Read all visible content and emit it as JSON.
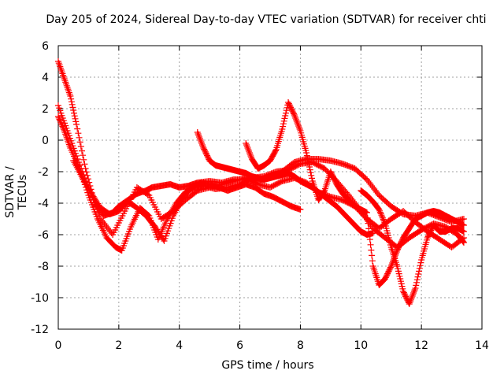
{
  "chart_data": {
    "type": "scatter",
    "title": "Day 205 of 2024, Sidereal Day-to-day VTEC variation (SDTVAR) for receiver chti",
    "xlabel": "GPS time / hours",
    "ylabel": "SDTVAR / TECUs",
    "xlim": [
      0,
      14
    ],
    "ylim": [
      -12,
      6
    ],
    "xticks": [
      "0",
      "2",
      "4",
      "6",
      "8",
      "10",
      "12",
      "14"
    ],
    "yticks": [
      "-12",
      "-10",
      "-8",
      "-6",
      "-4",
      "-2",
      "0",
      "2",
      "4",
      "6"
    ],
    "grid": true,
    "marker": "+",
    "color": "#ff0000",
    "series": [
      {
        "name": "track-1",
        "x": [
          0.0,
          0.2,
          0.4,
          0.6,
          0.9,
          1.2,
          1.5,
          1.8,
          2.0,
          2.3,
          2.6,
          2.9,
          3.1,
          3.4,
          3.7,
          4.0,
          4.3,
          4.6,
          5.0,
          5.4,
          5.8,
          6.2,
          6.6,
          7.0,
          7.4,
          7.8,
          8.2,
          8.6,
          9.0,
          9.4,
          9.8,
          10.2,
          10.6,
          11.0,
          11.4,
          11.8,
          12.2,
          12.6,
          13.0,
          13.4
        ],
        "y": [
          5.0,
          3.9,
          2.8,
          1.0,
          -1.8,
          -4.0,
          -4.8,
          -4.6,
          -4.2,
          -3.8,
          -3.4,
          -3.2,
          -3.0,
          -2.9,
          -2.8,
          -3.0,
          -2.9,
          -2.7,
          -2.6,
          -2.7,
          -2.5,
          -2.5,
          -2.6,
          -2.3,
          -2.0,
          -1.4,
          -1.2,
          -1.2,
          -1.3,
          -1.5,
          -1.8,
          -2.5,
          -3.5,
          -4.2,
          -4.7,
          -4.8,
          -4.6,
          -4.9,
          -5.2,
          -5.0
        ]
      },
      {
        "name": "track-2",
        "x": [
          0.0,
          0.2,
          0.4,
          0.7,
          1.0,
          1.3,
          1.6,
          1.9,
          2.1,
          2.4,
          2.7,
          3.0,
          3.3,
          3.6,
          3.9,
          4.2,
          4.5,
          4.8,
          5.2,
          5.6,
          6.0,
          6.4,
          6.8,
          7.2,
          7.6,
          8.0,
          8.4,
          8.8,
          9.2,
          9.6,
          10.0,
          10.4,
          10.8,
          11.2,
          11.6,
          12.0,
          12.4,
          12.8,
          13.2,
          13.4
        ],
        "y": [
          1.5,
          0.6,
          -0.5,
          -1.8,
          -3.5,
          -5.0,
          -6.2,
          -6.8,
          -7.0,
          -5.5,
          -4.3,
          -4.8,
          -6.3,
          -5.0,
          -4.0,
          -3.3,
          -3.0,
          -2.9,
          -3.1,
          -3.0,
          -2.8,
          -2.4,
          -2.3,
          -2.0,
          -1.9,
          -1.5,
          -1.4,
          -1.8,
          -2.6,
          -3.5,
          -4.5,
          -5.6,
          -6.2,
          -6.8,
          -6.2,
          -5.7,
          -5.3,
          -5.5,
          -6.0,
          -6.5
        ]
      },
      {
        "name": "track-3",
        "x": [
          0.0,
          0.3,
          0.6,
          1.0,
          1.4,
          1.8,
          2.2,
          2.6,
          3.0,
          3.4,
          3.8,
          4.2,
          4.6,
          5.0,
          5.4,
          5.8,
          6.2,
          6.6,
          7.0,
          7.4,
          7.8,
          8.2,
          8.6,
          9.0,
          9.4,
          9.8,
          10.2,
          10.6,
          11.0,
          11.4,
          11.8,
          12.2,
          12.6,
          13.0,
          13.4
        ],
        "y": [
          2.2,
          0.6,
          -1.0,
          -3.0,
          -5.0,
          -6.0,
          -4.5,
          -3.0,
          -3.5,
          -5.0,
          -4.5,
          -3.8,
          -3.2,
          -3.0,
          -2.8,
          -2.6,
          -2.4,
          -2.8,
          -3.0,
          -2.6,
          -2.4,
          -2.7,
          -3.3,
          -3.6,
          -3.8,
          -4.2,
          -5.0,
          -5.6,
          -5.0,
          -4.5,
          -5.2,
          -5.8,
          -6.3,
          -6.8,
          -6.2
        ]
      },
      {
        "name": "track-4",
        "x": [
          0.5,
          0.8,
          1.1,
          1.4,
          1.7,
          2.0,
          2.3,
          2.6,
          2.9,
          3.2,
          3.5,
          3.8,
          4.1,
          4.4,
          4.7,
          5.0,
          5.3,
          5.6,
          5.9,
          6.2,
          6.5,
          6.8,
          7.1,
          7.4,
          7.7,
          8.0
        ],
        "y": [
          -1.3,
          -2.4,
          -3.4,
          -4.3,
          -4.7,
          -4.5,
          -3.9,
          -4.3,
          -4.8,
          -5.5,
          -6.4,
          -4.8,
          -3.7,
          -3.0,
          -2.7,
          -2.8,
          -3.0,
          -3.2,
          -3.0,
          -2.8,
          -3.0,
          -3.4,
          -3.6,
          -3.9,
          -4.2,
          -4.4
        ]
      },
      {
        "name": "track-5",
        "x": [
          4.6,
          4.8,
          5.0,
          5.2,
          5.4,
          5.6,
          5.8,
          6.0,
          6.2,
          6.4,
          6.6,
          6.8,
          7.0,
          7.2,
          7.4,
          7.6,
          7.8,
          8.0,
          8.2,
          8.4,
          8.6,
          8.8,
          9.0,
          9.2,
          9.4,
          9.6,
          9.8,
          10.0,
          10.2,
          10.4
        ],
        "y": [
          0.5,
          -0.5,
          -1.3,
          -1.6,
          -1.7,
          -1.8,
          -1.9,
          -2.0,
          -2.1,
          -2.3,
          -2.4,
          -2.5,
          -2.4,
          -2.3,
          -2.2,
          -2.1,
          -2.3,
          -2.6,
          -2.8,
          -3.0,
          -3.3,
          -3.6,
          -3.9,
          -4.2,
          -4.6,
          -5.0,
          -5.4,
          -5.8,
          -6.0,
          -5.9
        ]
      },
      {
        "name": "track-6",
        "x": [
          6.2,
          6.4,
          6.6,
          6.8,
          7.0,
          7.2,
          7.4,
          7.6,
          7.8,
          8.0,
          8.2,
          8.4,
          8.6,
          8.8,
          9.0,
          9.2,
          9.4,
          9.6,
          9.8,
          10.0,
          10.2,
          10.4,
          10.6,
          10.8,
          11.0,
          11.2,
          11.4,
          11.6,
          11.8,
          12.0,
          12.2,
          12.4,
          12.6,
          12.8,
          13.0,
          13.2,
          13.4
        ],
        "y": [
          -0.2,
          -1.2,
          -1.8,
          -1.6,
          -1.3,
          -0.6,
          0.7,
          2.4,
          1.6,
          0.6,
          -0.8,
          -2.6,
          -3.8,
          -3.2,
          -2.0,
          -2.8,
          -3.4,
          -3.8,
          -4.2,
          -4.4,
          -4.6,
          -8.0,
          -9.2,
          -8.8,
          -8.0,
          -7.0,
          -6.2,
          -5.6,
          -5.0,
          -4.8,
          -4.6,
          -4.5,
          -4.6,
          -4.8,
          -5.0,
          -5.2,
          -5.4
        ]
      },
      {
        "name": "track-7",
        "x": [
          10.0,
          10.2,
          10.4,
          10.6,
          10.8,
          11.0,
          11.2,
          11.4,
          11.6,
          11.8,
          12.0,
          12.2,
          12.4,
          12.6,
          12.8,
          13.0,
          13.2,
          13.4
        ],
        "y": [
          -3.2,
          -3.5,
          -3.9,
          -4.4,
          -5.3,
          -6.8,
          -8.0,
          -9.6,
          -10.4,
          -9.4,
          -7.6,
          -6.2,
          -5.4,
          -5.8,
          -5.8,
          -5.6,
          -5.6,
          -5.8
        ]
      }
    ]
  }
}
